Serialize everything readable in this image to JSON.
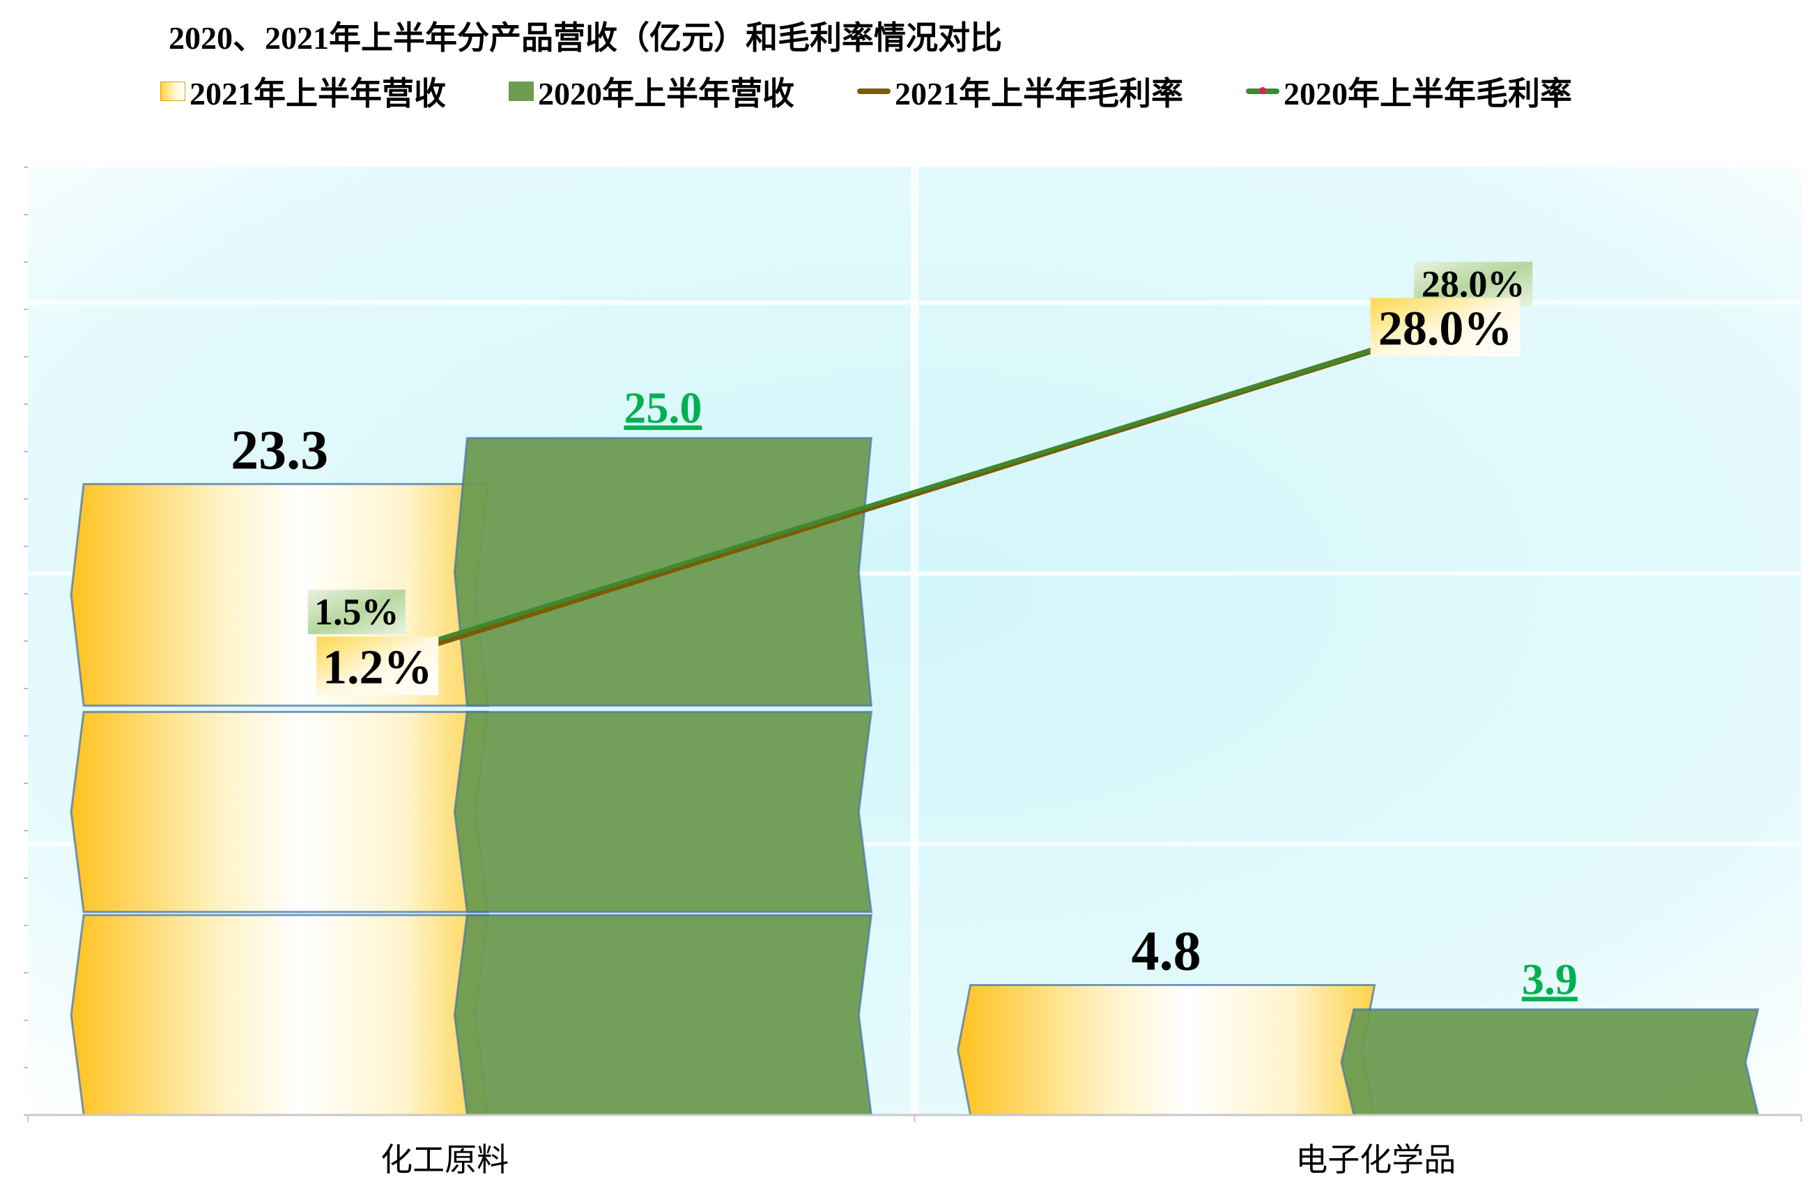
{
  "chart_data": {
    "type": "bar",
    "title": "2020、2021年上半年分产品营收（亿元）和毛利率情况对比",
    "categories": [
      "化工原料",
      "电子化学品"
    ],
    "series": [
      {
        "name": "2021年上半年营收",
        "type": "bar",
        "values": [
          23.3,
          4.8
        ],
        "labels": [
          "23.3",
          "4.8"
        ],
        "color": "#ffd23a"
      },
      {
        "name": "2020年上半年营收",
        "type": "bar",
        "values": [
          25.0,
          3.9
        ],
        "labels": [
          " 25.0",
          " 3.9"
        ],
        "color": "#6d9c52",
        "label_color": "#00b050"
      },
      {
        "name": "2021年上半年毛利率",
        "type": "line",
        "values": [
          1.2,
          28.0
        ],
        "labels": [
          "1.2%",
          "28.0%"
        ],
        "color": "#7a5c05"
      },
      {
        "name": "2020年上半年毛利率",
        "type": "line",
        "values": [
          1.5,
          28.0
        ],
        "labels": [
          "1.5%",
          "28.0%"
        ],
        "color": "#3e8a30"
      }
    ],
    "ylim": [
      0,
      35
    ],
    "y2lim": [
      -35,
      40
    ],
    "grid": true,
    "legend": "top"
  }
}
